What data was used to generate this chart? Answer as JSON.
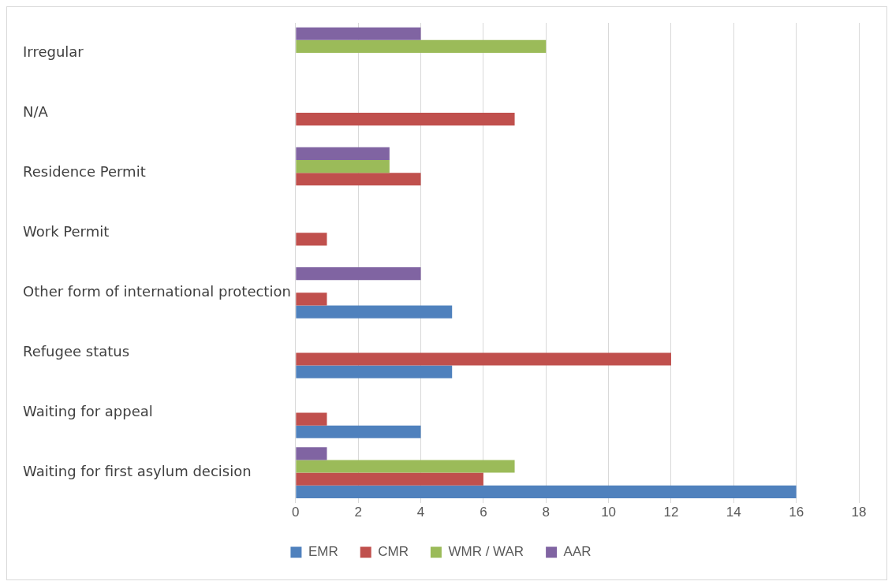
{
  "chart_data": {
    "type": "bar",
    "orientation": "horizontal",
    "categories": [
      "Irregular",
      "N/A",
      "Residence Permit",
      "Work Permit",
      "Other form of international protection",
      "Refugee status",
      "Waiting for appeal",
      "Waiting for first asylum decision"
    ],
    "series": [
      {
        "name": "EMR",
        "color": "#4f81bd",
        "values": [
          0,
          0,
          0,
          0,
          5,
          5,
          4,
          16
        ]
      },
      {
        "name": "CMR",
        "color": "#c0504d",
        "values": [
          0,
          7,
          4,
          1,
          1,
          12,
          1,
          6
        ]
      },
      {
        "name": "WMR / WAR",
        "color": "#9bbb59",
        "values": [
          8,
          0,
          3,
          0,
          0,
          0,
          0,
          7
        ]
      },
      {
        "name": "AAR",
        "color": "#8064a2",
        "values": [
          4,
          0,
          3,
          0,
          4,
          0,
          0,
          1
        ]
      }
    ],
    "xlim": [
      0,
      18
    ],
    "xticks": [
      0,
      2,
      4,
      6,
      8,
      10,
      12,
      14,
      16,
      18
    ],
    "grid": "x",
    "legend": "bottom"
  }
}
